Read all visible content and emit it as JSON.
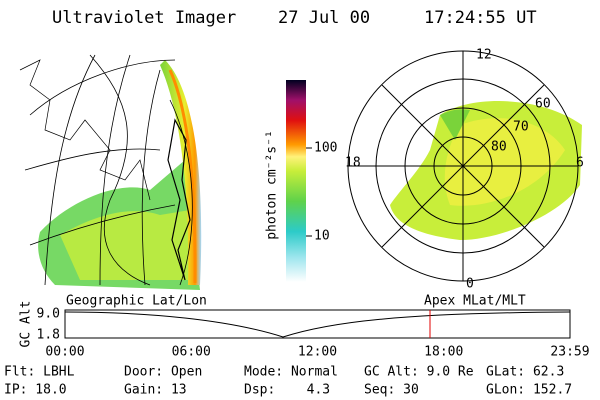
{
  "header": {
    "title": "Ultraviolet Imager",
    "date": "27 Jul 00",
    "time": "17:24:55 UT"
  },
  "colorbar": {
    "label": "photon cm⁻²s⁻¹",
    "ticks": [
      "100",
      "10"
    ]
  },
  "polar_plot": {
    "mlt_labels": [
      "12",
      "18",
      "6",
      "0"
    ],
    "mlat_labels": [
      "60",
      "70",
      "80"
    ]
  },
  "panels": {
    "left": "Geographic Lat/Lon",
    "right": "Apex MLat/MLT"
  },
  "orbit_plot": {
    "y_label": "GC Alt",
    "y_ticks": [
      "9.0",
      "1.8"
    ],
    "x_ticks": [
      "00:00",
      "06:00",
      "12:00",
      "18:00",
      "23:59"
    ]
  },
  "info": {
    "rows": [
      [
        "Flt: LBHL",
        "Door: Open",
        "Mode: Normal",
        "GC Alt: 9.0 Re",
        "GLat: 62.3"
      ],
      [
        "IP: 18.0",
        "Gain: 13",
        "Dsp:    4.3",
        "Seq: 30",
        "GLon: 152.7"
      ]
    ]
  }
}
